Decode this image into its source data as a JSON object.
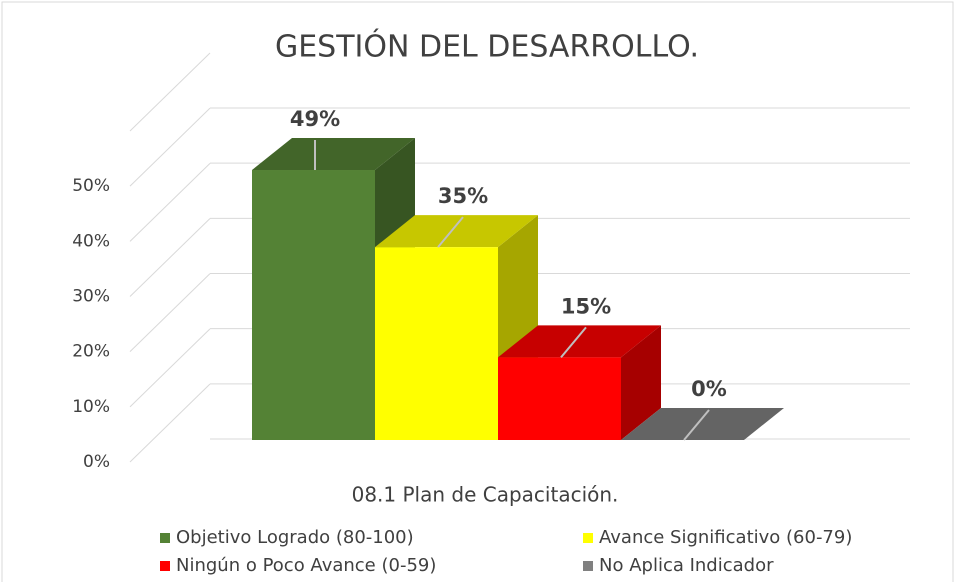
{
  "chart_data": {
    "type": "bar",
    "title": "GESTIÓN DEL DESARROLLO.",
    "categories": [
      "08.1 Plan de Capacitación."
    ],
    "series": [
      {
        "name": "Objetivo Logrado (80-100)",
        "color": "#548235",
        "values": [
          49
        ],
        "value_labels": [
          "49%"
        ]
      },
      {
        "name": "Avance Significativo (60-79)",
        "color": "#ffff00",
        "values": [
          35
        ],
        "value_labels": [
          "35%"
        ]
      },
      {
        "name": "Ningún o Poco Avance (0-59)",
        "color": "#ff0000",
        "values": [
          15
        ],
        "value_labels": [
          "15%"
        ]
      },
      {
        "name": "No Aplica Indicador",
        "color": "#808080",
        "values": [
          0
        ],
        "value_labels": [
          "0%"
        ]
      }
    ],
    "ylim": [
      0,
      60
    ],
    "yticks": [
      {
        "value": 0,
        "label": "0%"
      },
      {
        "value": 10,
        "label": "10%"
      },
      {
        "value": 20,
        "label": "20%"
      },
      {
        "value": 30,
        "label": "30%"
      },
      {
        "value": 40,
        "label": "40%"
      },
      {
        "value": 50,
        "label": "50%"
      }
    ],
    "grid": true
  }
}
